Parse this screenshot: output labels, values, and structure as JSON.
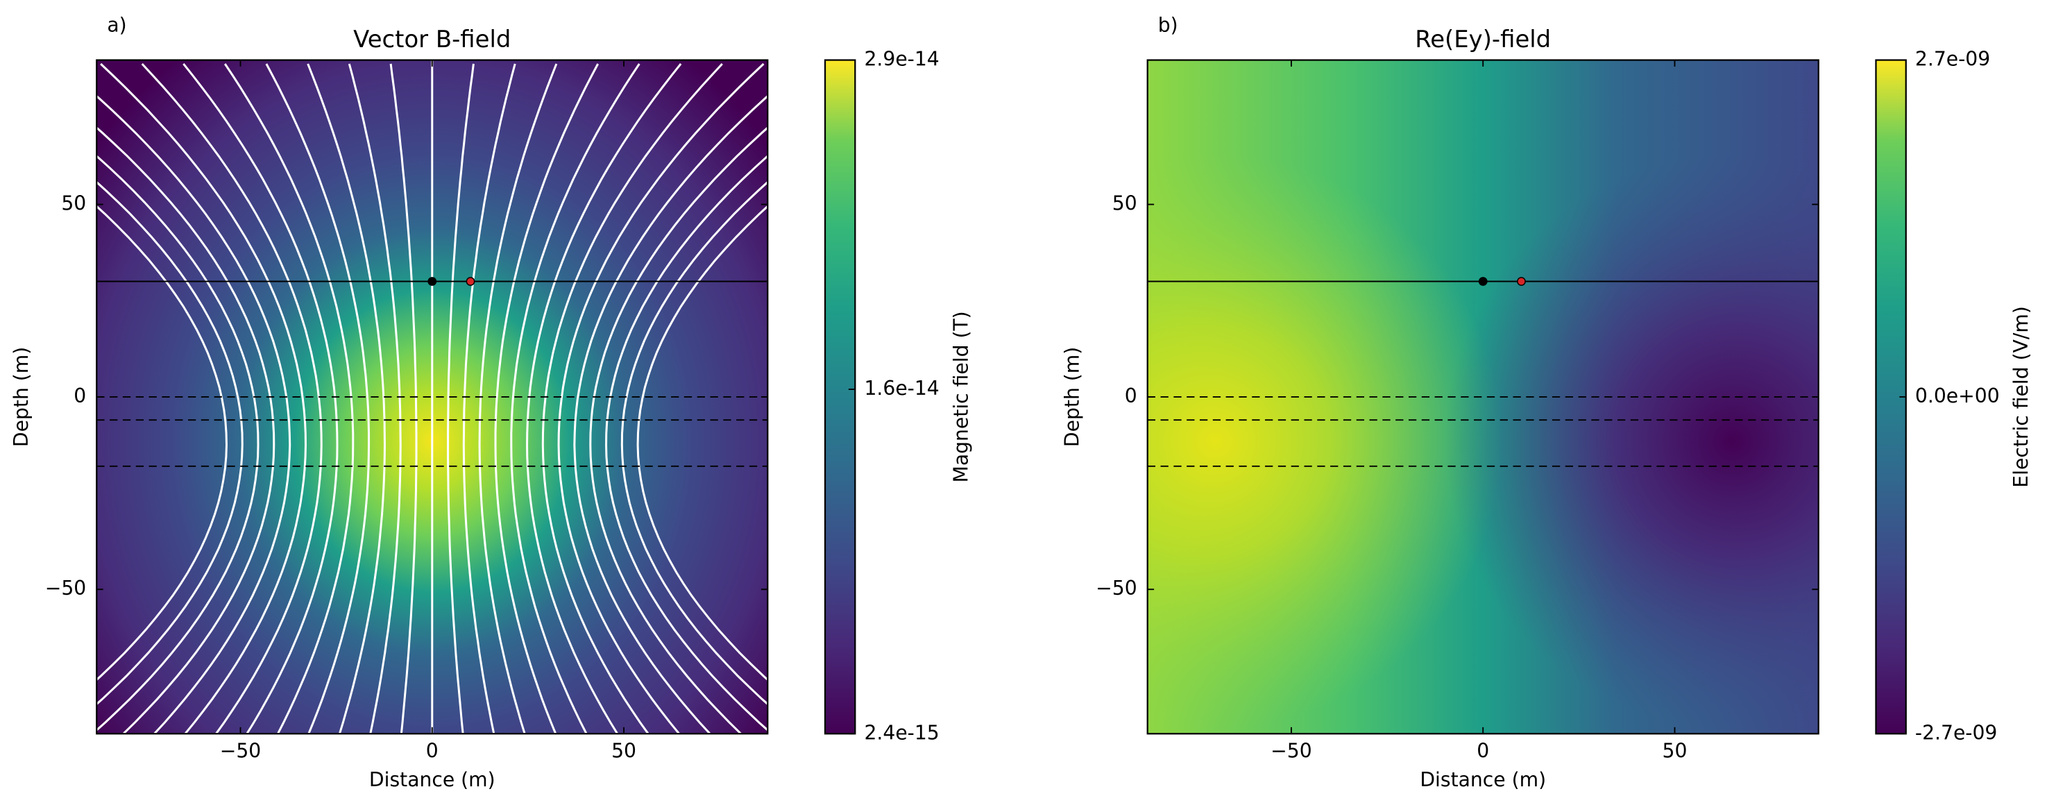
{
  "chart_data": [
    {
      "type": "contour",
      "panel_label": "a)",
      "title": "Vector B-field",
      "x_label": "Distance (m)",
      "y_label": "Depth (m)",
      "xlim": [
        -87.5,
        87.5
      ],
      "ylim": [
        -87.5,
        87.5
      ],
      "xticks": [
        {
          "value": -50,
          "label": "−50"
        },
        0,
        50
      ],
      "yticks": [
        {
          "value": -50,
          "label": "−50"
        },
        0,
        50
      ],
      "colormap": "viridis",
      "field": "dipole",
      "streamlines": true,
      "colorbar": {
        "label": "Magnetic field (T)",
        "lim": [
          2.4e-15,
          2.9e-14
        ],
        "ticks": [
          {
            "value": 2.4e-15,
            "label": "2.4e-15"
          },
          {
            "value": 1.6e-14,
            "label": "1.6e-14"
          },
          {
            "value": 2.9e-14,
            "label": "2.9e-14"
          }
        ]
      },
      "hlines": [
        {
          "y": 30,
          "style": "solid"
        },
        {
          "y": 0,
          "style": "dashed"
        },
        {
          "y": -6,
          "style": "dashed"
        },
        {
          "y": -18,
          "style": "dashed"
        }
      ],
      "points": [
        {
          "x": 0,
          "y": 30,
          "color": "#000000"
        },
        {
          "x": 10,
          "y": 30,
          "color": "#d62728"
        }
      ]
    },
    {
      "type": "contour",
      "panel_label": "b)",
      "title": "Re(Ey)-field",
      "x_label": "Distance (m)",
      "y_label": "Depth (m)",
      "xlim": [
        -87.5,
        87.5
      ],
      "ylim": [
        -87.5,
        87.5
      ],
      "xticks": [
        {
          "value": -50,
          "label": "−50"
        },
        0,
        50
      ],
      "yticks": [
        {
          "value": -50,
          "label": "−50"
        },
        0,
        50
      ],
      "colormap": "viridis",
      "field": "antisymmetric",
      "streamlines": false,
      "colorbar": {
        "label": "Electric field (V/m)",
        "lim": [
          -2.7e-09,
          2.7e-09
        ],
        "ticks": [
          {
            "value": -2.7e-09,
            "label": "-2.7e-09"
          },
          {
            "value": 0,
            "label": "0.0e+00"
          },
          {
            "value": 2.7e-09,
            "label": "2.7e-09"
          }
        ]
      },
      "hlines": [
        {
          "y": 30,
          "style": "solid"
        },
        {
          "y": 0,
          "style": "dashed"
        },
        {
          "y": -6,
          "style": "dashed"
        },
        {
          "y": -18,
          "style": "dashed"
        }
      ],
      "points": [
        {
          "x": 0,
          "y": 30,
          "color": "#000000"
        },
        {
          "x": 10,
          "y": 30,
          "color": "#d62728"
        }
      ]
    }
  ]
}
